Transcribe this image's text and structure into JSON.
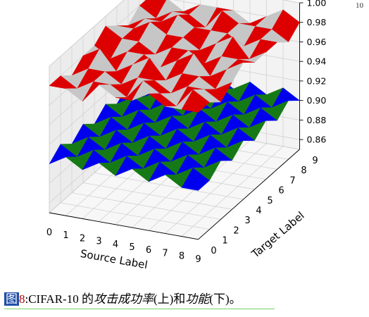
{
  "page_number": "10",
  "caption": {
    "figure_label": "图",
    "figure_number": "8",
    "part1": ":CIFAR-10 的",
    "term1": "攻击成功率",
    "part2": "(上)和",
    "term2": "功能",
    "part3": "(下)。"
  },
  "colors": {
    "upper_surface": [
      "#dd0000",
      "#c6c6c6"
    ],
    "lower_surface": [
      "#0000ee",
      "#157a15"
    ],
    "caption_underline": "#7ccf6a",
    "figure_label_bg": "#1f4ea6",
    "figure_number": "#c00000"
  },
  "chart_data": {
    "type": "surface3d",
    "xlabel": "Source Label",
    "ylabel": "Target Label",
    "zlabel": "",
    "x": [
      0,
      1,
      2,
      3,
      4,
      5,
      6,
      7,
      8,
      9
    ],
    "y": [
      0,
      1,
      2,
      3,
      4,
      5,
      6,
      7,
      8,
      9
    ],
    "zlim": [
      0.85,
      1.0
    ],
    "z_ticks": [
      "0.86",
      "0.88",
      "0.90",
      "0.92",
      "0.94",
      "0.96",
      "0.98",
      "1.00"
    ],
    "x_tick_labels": [
      "0",
      "1",
      "2",
      "3",
      "4",
      "5",
      "6",
      "7",
      "8",
      "9"
    ],
    "y_tick_labels": [
      "0",
      "1",
      "2",
      "3",
      "4",
      "5",
      "6",
      "7",
      "8",
      "9"
    ],
    "grid": true,
    "series": [
      {
        "values": [
          [
            0.98,
            0.98,
            0.97,
            0.99,
            0.98,
            0.98,
            0.99,
            0.98,
            0.98,
            0.98
          ],
          [
            0.98,
            0.97,
            0.98,
            0.98,
            0.97,
            0.99,
            0.98,
            0.97,
            0.99,
            0.98
          ],
          [
            0.97,
            0.98,
            0.98,
            0.97,
            0.98,
            0.98,
            0.97,
            0.98,
            0.98,
            0.97
          ],
          [
            0.98,
            0.99,
            0.97,
            0.98,
            0.99,
            0.97,
            0.98,
            0.98,
            0.97,
            0.98
          ],
          [
            0.98,
            0.97,
            0.98,
            0.98,
            0.97,
            0.98,
            0.99,
            0.97,
            0.98,
            0.99
          ],
          [
            0.99,
            0.98,
            0.98,
            0.97,
            0.98,
            0.98,
            0.97,
            0.98,
            0.98,
            0.98
          ],
          [
            0.98,
            0.98,
            0.99,
            0.98,
            0.98,
            0.97,
            0.98,
            0.99,
            0.97,
            0.98
          ],
          [
            0.97,
            0.98,
            0.98,
            0.99,
            0.98,
            0.98,
            0.98,
            0.97,
            0.98,
            0.98
          ],
          [
            0.98,
            0.97,
            0.98,
            0.98,
            0.97,
            0.99,
            0.98,
            0.98,
            0.98,
            0.97
          ],
          [
            0.98,
            0.98,
            0.97,
            0.98,
            0.98,
            0.98,
            0.97,
            0.98,
            0.99,
            0.98
          ]
        ]
      },
      {
        "values": [
          [
            0.9,
            0.91,
            0.9,
            0.91,
            0.9,
            0.91,
            0.9,
            0.91,
            0.9,
            0.9
          ],
          [
            0.91,
            0.9,
            0.91,
            0.9,
            0.91,
            0.9,
            0.91,
            0.9,
            0.91,
            0.9
          ],
          [
            0.9,
            0.91,
            0.9,
            0.91,
            0.9,
            0.91,
            0.9,
            0.91,
            0.9,
            0.91
          ],
          [
            0.91,
            0.9,
            0.91,
            0.9,
            0.91,
            0.9,
            0.91,
            0.9,
            0.91,
            0.9
          ],
          [
            0.9,
            0.91,
            0.9,
            0.91,
            0.9,
            0.91,
            0.9,
            0.91,
            0.9,
            0.91
          ],
          [
            0.91,
            0.9,
            0.91,
            0.9,
            0.91,
            0.9,
            0.91,
            0.9,
            0.91,
            0.9
          ],
          [
            0.9,
            0.91,
            0.9,
            0.91,
            0.9,
            0.91,
            0.9,
            0.91,
            0.9,
            0.91
          ],
          [
            0.91,
            0.9,
            0.91,
            0.9,
            0.91,
            0.9,
            0.91,
            0.9,
            0.91,
            0.9
          ],
          [
            0.9,
            0.91,
            0.9,
            0.91,
            0.9,
            0.91,
            0.9,
            0.91,
            0.9,
            0.91
          ],
          [
            0.91,
            0.9,
            0.91,
            0.9,
            0.91,
            0.9,
            0.91,
            0.9,
            0.91,
            0.9
          ]
        ]
      }
    ]
  }
}
